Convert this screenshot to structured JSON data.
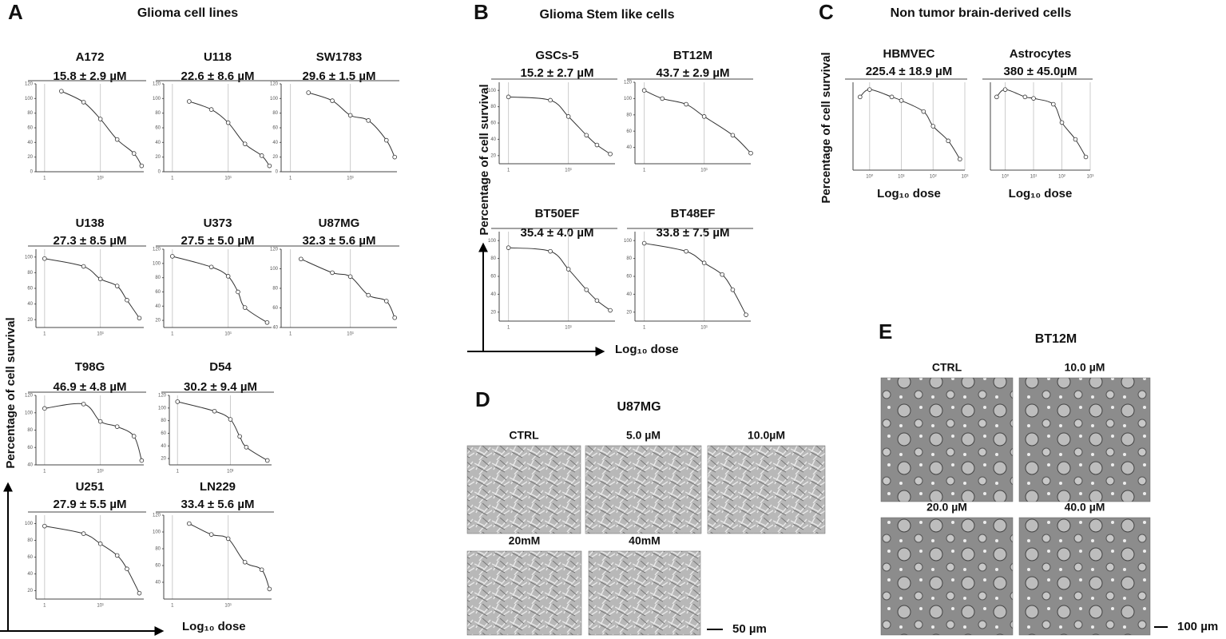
{
  "panels": [
    {
      "letter": "A",
      "title": "Glioma cell lines",
      "y_axis_label": "Percentage of cell survival",
      "x_axis_label": "Log₁₀ dose",
      "charts": [
        {
          "type": "line",
          "title": "A172",
          "subtitle": "15.8 ± 2.9 µM",
          "log_x": true,
          "xlim": [
            0.7,
            60
          ],
          "xticks": [
            1,
            {
              "value": 10,
              "label": "10¹"
            }
          ],
          "ylim": [
            0,
            120
          ],
          "yticks": [
            0,
            20,
            40,
            60,
            80,
            100,
            120
          ],
          "x": [
            2,
            5,
            10,
            20,
            40,
            55
          ],
          "values": [
            110,
            95,
            72,
            44,
            25,
            8
          ]
        },
        {
          "type": "line",
          "title": "U118",
          "subtitle": "22.6 ± 8.6 µM",
          "log_x": true,
          "xlim": [
            0.7,
            60
          ],
          "xticks": [
            1,
            {
              "value": 10,
              "label": "10¹"
            }
          ],
          "ylim": [
            0,
            120
          ],
          "yticks": [
            0,
            20,
            40,
            60,
            80,
            100,
            120
          ],
          "x": [
            2,
            5,
            10,
            20,
            40,
            55
          ],
          "values": [
            96,
            85,
            67,
            38,
            22,
            8
          ]
        },
        {
          "type": "line",
          "title": "SW1783",
          "subtitle": "29.6 ± 1.5 µM",
          "log_x": true,
          "xlim": [
            0.7,
            60
          ],
          "xticks": [
            1,
            {
              "value": 10,
              "label": "10¹"
            }
          ],
          "ylim": [
            0,
            120
          ],
          "yticks": [
            0,
            20,
            40,
            60,
            80,
            100,
            120
          ],
          "x": [
            2,
            5,
            10,
            20,
            40,
            55
          ],
          "values": [
            108,
            97,
            77,
            70,
            43,
            20
          ]
        },
        {
          "type": "line",
          "title": "U138",
          "subtitle": "27.3 ± 8.5 µM",
          "log_x": true,
          "xlim": [
            0.7,
            60
          ],
          "xticks": [
            1,
            {
              "value": 10,
              "label": "10¹"
            }
          ],
          "ylim": [
            10,
            110
          ],
          "yticks": [
            20,
            40,
            60,
            80,
            100
          ],
          "x": [
            1,
            5,
            10,
            20,
            30,
            50
          ],
          "values": [
            98,
            88,
            72,
            63,
            45,
            22
          ]
        },
        {
          "type": "line",
          "title": "U373",
          "subtitle": "27.5  ± 5.0 µM",
          "log_x": true,
          "xlim": [
            0.7,
            60
          ],
          "xticks": [
            1,
            {
              "value": 10,
              "label": "10¹"
            }
          ],
          "ylim": [
            10,
            120
          ],
          "yticks": [
            20,
            40,
            60,
            80,
            100,
            120
          ],
          "x": [
            1,
            5,
            10,
            15,
            20,
            50
          ],
          "values": [
            110,
            95,
            82,
            60,
            38,
            17
          ]
        },
        {
          "type": "line",
          "title": "U87MG",
          "subtitle": "32.3 ± 5.6 µM",
          "log_x": true,
          "xlim": [
            0.7,
            60
          ],
          "xticks": [
            1,
            {
              "value": 10,
              "label": "10¹"
            }
          ],
          "ylim": [
            40,
            120
          ],
          "yticks": [
            40,
            60,
            80,
            100,
            120
          ],
          "x": [
            1.5,
            5,
            10,
            20,
            40,
            55
          ],
          "values": [
            110,
            96,
            92,
            73,
            67,
            50
          ]
        },
        {
          "type": "line",
          "title": "T98G",
          "subtitle": "46.9 ± 4.8 µM",
          "log_x": true,
          "xlim": [
            0.7,
            60
          ],
          "xticks": [
            1,
            {
              "value": 10,
              "label": "10¹"
            }
          ],
          "ylim": [
            40,
            120
          ],
          "yticks": [
            40,
            60,
            80,
            100,
            120
          ],
          "x": [
            1,
            5,
            10,
            20,
            40,
            55
          ],
          "values": [
            105,
            110,
            90,
            84,
            73,
            45
          ]
        },
        {
          "type": "line",
          "title": "D54",
          "subtitle": "30.2  ± 9.4 µM",
          "log_x": true,
          "xlim": [
            0.7,
            60
          ],
          "xticks": [
            1,
            {
              "value": 10,
              "label": "10¹"
            }
          ],
          "ylim": [
            10,
            120
          ],
          "yticks": [
            20,
            40,
            60,
            80,
            100,
            120
          ],
          "x": [
            1,
            5,
            10,
            15,
            20,
            50
          ],
          "values": [
            110,
            95,
            82,
            55,
            38,
            17
          ]
        },
        {
          "type": "line",
          "title": "U251",
          "subtitle": "27.9 ± 5.5 µM",
          "log_x": true,
          "xlim": [
            0.7,
            60
          ],
          "xticks": [
            1,
            {
              "value": 10,
              "label": "10¹"
            }
          ],
          "ylim": [
            10,
            110
          ],
          "yticks": [
            20,
            40,
            60,
            80,
            100
          ],
          "x": [
            1,
            5,
            10,
            20,
            30,
            50
          ],
          "values": [
            97,
            88,
            76,
            62,
            46,
            17
          ]
        },
        {
          "type": "line",
          "title": "LN229",
          "subtitle": "33.4 ± 5.6 µM",
          "log_x": true,
          "xlim": [
            0.7,
            60
          ],
          "xticks": [
            1,
            {
              "value": 10,
              "label": "10¹"
            }
          ],
          "ylim": [
            20,
            120
          ],
          "yticks": [
            40,
            60,
            80,
            100,
            120
          ],
          "x": [
            2,
            5,
            10,
            20,
            40,
            55
          ],
          "values": [
            110,
            97,
            92,
            64,
            55,
            32
          ]
        }
      ]
    },
    {
      "letter": "B",
      "title": "Glioma Stem like cells",
      "y_axis_label": "Percentage of cell survival",
      "x_axis_label": "Log₁₀ dose",
      "charts": [
        {
          "type": "line",
          "title": "GSCs-5",
          "subtitle": "15.2  ± 2.7 µM",
          "log_x": true,
          "xlim": [
            0.7,
            60
          ],
          "xticks": [
            1,
            {
              "value": 10,
              "label": "10¹"
            }
          ],
          "ylim": [
            10,
            110
          ],
          "yticks": [
            20,
            40,
            60,
            80,
            100
          ],
          "x": [
            1,
            5,
            10,
            20,
            30,
            50
          ],
          "values": [
            92,
            88,
            68,
            45,
            33,
            22
          ]
        },
        {
          "type": "line",
          "title": "BT12M",
          "subtitle": "43.7 ± 2.9 µM",
          "log_x": true,
          "xlim": [
            0.7,
            60
          ],
          "xticks": [
            1,
            {
              "value": 10,
              "label": "10¹"
            }
          ],
          "ylim": [
            20,
            120
          ],
          "yticks": [
            40,
            60,
            80,
            100,
            120
          ],
          "x": [
            1,
            2,
            5,
            10,
            30,
            60
          ],
          "values": [
            110,
            100,
            93,
            78,
            55,
            33
          ]
        },
        {
          "type": "line",
          "title": "BT50EF",
          "subtitle": "35.4  ± 4.0 µM",
          "log_x": true,
          "xlim": [
            0.7,
            60
          ],
          "xticks": [
            1,
            {
              "value": 10,
              "label": "10¹"
            }
          ],
          "ylim": [
            10,
            110
          ],
          "yticks": [
            20,
            40,
            60,
            80,
            100
          ],
          "x": [
            1,
            5,
            10,
            20,
            30,
            50
          ],
          "values": [
            92,
            88,
            68,
            45,
            33,
            22
          ]
        },
        {
          "type": "line",
          "title": "BT48EF",
          "subtitle": "33.8  ± 7.5 µM",
          "log_x": true,
          "xlim": [
            0.7,
            60
          ],
          "xticks": [
            1,
            {
              "value": 10,
              "label": "10¹"
            }
          ],
          "ylim": [
            10,
            110
          ],
          "yticks": [
            20,
            40,
            60,
            80,
            100
          ],
          "x": [
            1,
            5,
            10,
            20,
            30,
            50
          ],
          "values": [
            97,
            88,
            75,
            62,
            45,
            17
          ]
        }
      ]
    },
    {
      "letter": "C",
      "title": "Non tumor brain-derived cells",
      "y_axis_label": "Percentage of cell survival",
      "charts": [
        {
          "type": "line",
          "title": "HBMVEC",
          "subtitle": "225.4 ± 18.9 µM",
          "x_axis_label": "Log₁₀ dose",
          "log_x": true,
          "xlim": [
            0.3,
            1000
          ],
          "xticks": [
            {
              "value": 1,
              "label": "10⁰"
            },
            {
              "value": 10,
              "label": "10¹"
            },
            {
              "value": 100,
              "label": "10²"
            },
            {
              "value": 1000,
              "label": "10³"
            }
          ],
          "ylim": [
            0,
            120
          ],
          "x": [
            0.5,
            1,
            5,
            10,
            50,
            100,
            300,
            700
          ],
          "values": [
            100,
            110,
            100,
            95,
            80,
            60,
            40,
            15
          ]
        },
        {
          "type": "line",
          "title": "Astrocytes",
          "subtitle": "380  ± 45.0µM",
          "x_axis_label": "Log₁₀ dose",
          "log_x": true,
          "xlim": [
            0.3,
            1000
          ],
          "xticks": [
            {
              "value": 1,
              "label": "10⁰"
            },
            {
              "value": 10,
              "label": "10¹"
            },
            {
              "value": 100,
              "label": "10²"
            },
            {
              "value": 1000,
              "label": "10³"
            }
          ],
          "ylim": [
            0,
            120
          ],
          "x": [
            0.5,
            1,
            5,
            10,
            50,
            100,
            300,
            700
          ],
          "values": [
            100,
            110,
            100,
            98,
            90,
            65,
            42,
            18
          ]
        }
      ]
    },
    {
      "letter": "D",
      "title": "U87MG",
      "images": [
        "CTRL",
        "5.0 µM",
        "10.0µM",
        "20mM",
        "40mM"
      ],
      "scale_bar": "50 µm"
    },
    {
      "letter": "E",
      "title": "BT12M",
      "images": [
        "CTRL",
        "10.0 µM",
        "20.0 µM",
        "40.0 µM"
      ],
      "scale_bar": "100 µm"
    }
  ]
}
